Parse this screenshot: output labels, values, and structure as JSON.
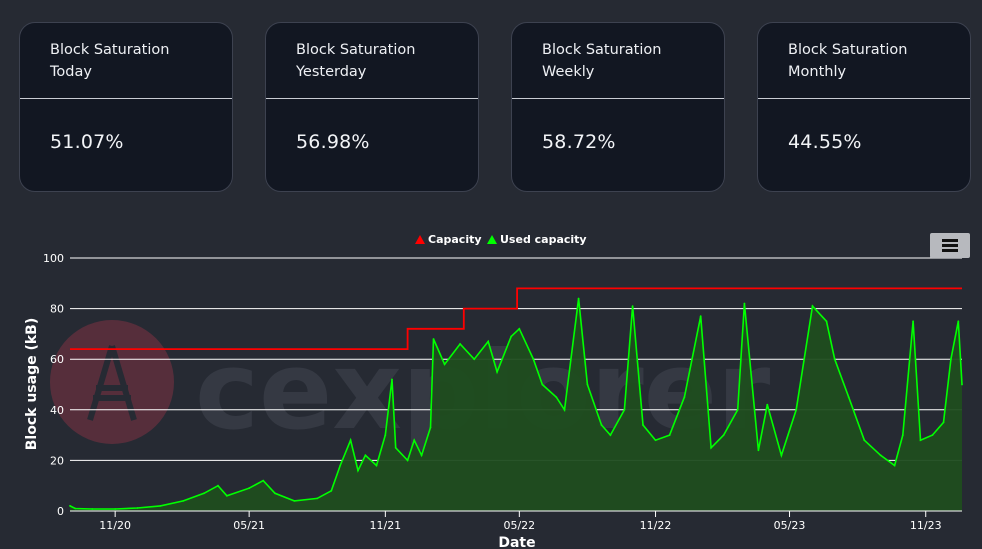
{
  "cards": [
    {
      "title": "Block Saturation\nToday",
      "value": "51.07%"
    },
    {
      "title": "Block Saturation\nYesterday",
      "value": "56.98%"
    },
    {
      "title": "Block Saturation\nWeekly",
      "value": "58.72%"
    },
    {
      "title": "Block Saturation\nMonthly",
      "value": "44.55%"
    }
  ],
  "watermark": "cexplorer",
  "menu_icon": "hamburger-icon",
  "colors": {
    "capacity": "#ff0000",
    "used": "#00ff00",
    "used_fill": "#1f4d1f",
    "background": "#262a33",
    "card_bg": "#121722"
  },
  "chart_data": {
    "type": "line",
    "xlabel": "Date",
    "ylabel": "Block usage (kB)",
    "ylim": [
      0,
      100
    ],
    "yticks": [
      0,
      20,
      40,
      60,
      80,
      100
    ],
    "xlim": [
      "2020-09-01",
      "2023-12-20"
    ],
    "xticks": [
      "11/20",
      "05/21",
      "11/21",
      "05/22",
      "11/22",
      "05/23",
      "11/23"
    ],
    "xtick_dates": [
      "2020-11-01",
      "2021-05-01",
      "2021-11-01",
      "2022-05-01",
      "2022-11-01",
      "2023-05-01",
      "2023-11-01"
    ],
    "legend": [
      "Capacity",
      "Used capacity"
    ],
    "legend_position": "top-center",
    "grid": true,
    "series": [
      {
        "name": "Capacity",
        "step": true,
        "points": [
          [
            "2020-09-01",
            64
          ],
          [
            "2021-12-01",
            64
          ],
          [
            "2021-12-01",
            72
          ],
          [
            "2022-02-15",
            72
          ],
          [
            "2022-02-15",
            80
          ],
          [
            "2022-04-28",
            80
          ],
          [
            "2022-04-28",
            88
          ],
          [
            "2023-12-20",
            88
          ]
        ]
      },
      {
        "name": "Used capacity",
        "points": [
          [
            "2020-09-01",
            2
          ],
          [
            "2020-09-08",
            1
          ],
          [
            "2020-10-01",
            0.8
          ],
          [
            "2020-11-01",
            0.8
          ],
          [
            "2020-12-01",
            1.2
          ],
          [
            "2021-01-01",
            2
          ],
          [
            "2021-02-01",
            4
          ],
          [
            "2021-03-01",
            7
          ],
          [
            "2021-03-20",
            10
          ],
          [
            "2021-04-01",
            6
          ],
          [
            "2021-05-01",
            9
          ],
          [
            "2021-05-20",
            12
          ],
          [
            "2021-06-05",
            7
          ],
          [
            "2021-07-01",
            4
          ],
          [
            "2021-08-01",
            5
          ],
          [
            "2021-08-20",
            8
          ],
          [
            "2021-09-01",
            18
          ],
          [
            "2021-09-15",
            28
          ],
          [
            "2021-09-25",
            16
          ],
          [
            "2021-10-05",
            22
          ],
          [
            "2021-10-20",
            18
          ],
          [
            "2021-11-01",
            30
          ],
          [
            "2021-11-10",
            52
          ],
          [
            "2021-11-15",
            25
          ],
          [
            "2021-12-01",
            20
          ],
          [
            "2021-12-10",
            28
          ],
          [
            "2021-12-20",
            22
          ],
          [
            "2022-01-01",
            33
          ],
          [
            "2022-01-05",
            68
          ],
          [
            "2022-01-20",
            58
          ],
          [
            "2022-02-10",
            66
          ],
          [
            "2022-03-01",
            60
          ],
          [
            "2022-03-20",
            67
          ],
          [
            "2022-04-01",
            55
          ],
          [
            "2022-04-20",
            69
          ],
          [
            "2022-05-01",
            72
          ],
          [
            "2022-05-20",
            60
          ],
          [
            "2022-06-01",
            50
          ],
          [
            "2022-06-20",
            45
          ],
          [
            "2022-07-01",
            40
          ],
          [
            "2022-07-20",
            84
          ],
          [
            "2022-08-01",
            50
          ],
          [
            "2022-08-20",
            34
          ],
          [
            "2022-09-01",
            30
          ],
          [
            "2022-09-20",
            40
          ],
          [
            "2022-10-01",
            81
          ],
          [
            "2022-10-15",
            34
          ],
          [
            "2022-11-01",
            28
          ],
          [
            "2022-11-20",
            30
          ],
          [
            "2022-12-10",
            45
          ],
          [
            "2023-01-01",
            77
          ],
          [
            "2023-01-15",
            25
          ],
          [
            "2023-02-01",
            30
          ],
          [
            "2023-02-20",
            40
          ],
          [
            "2023-03-01",
            82
          ],
          [
            "2023-03-20",
            24
          ],
          [
            "2023-04-01",
            42
          ],
          [
            "2023-04-20",
            22
          ],
          [
            "2023-05-10",
            40
          ],
          [
            "2023-06-01",
            81
          ],
          [
            "2023-06-20",
            75
          ],
          [
            "2023-07-01",
            60
          ],
          [
            "2023-07-20",
            45
          ],
          [
            "2023-08-10",
            28
          ],
          [
            "2023-09-01",
            22
          ],
          [
            "2023-09-20",
            18
          ],
          [
            "2023-10-01",
            30
          ],
          [
            "2023-10-15",
            75
          ],
          [
            "2023-10-25",
            28
          ],
          [
            "2023-11-10",
            30
          ],
          [
            "2023-11-25",
            35
          ],
          [
            "2023-12-05",
            60
          ],
          [
            "2023-12-15",
            75
          ],
          [
            "2023-12-20",
            50
          ]
        ]
      }
    ]
  }
}
